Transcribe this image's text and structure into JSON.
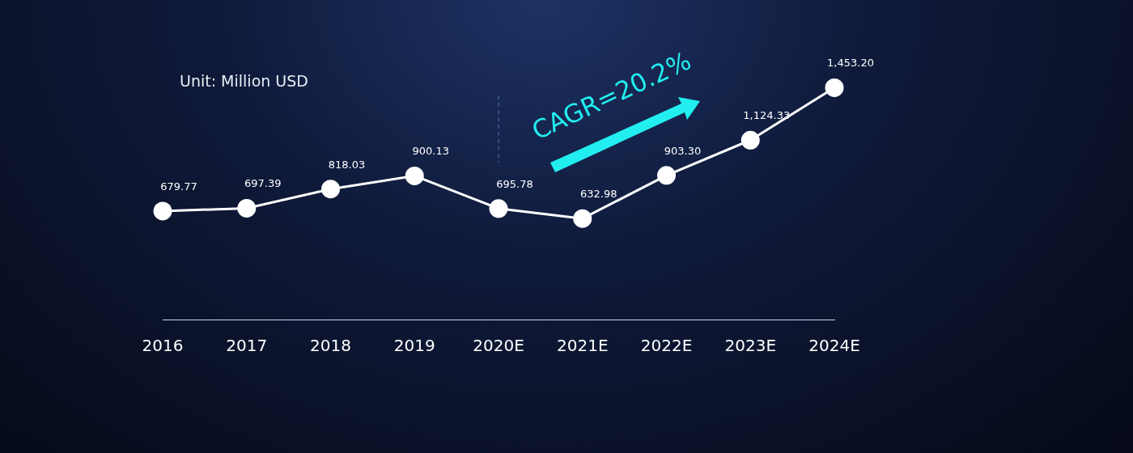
{
  "chart_data": {
    "type": "line",
    "title": "Unit: Million USD",
    "categories": [
      "2016",
      "2017",
      "2018",
      "2019",
      "2020E",
      "2021E",
      "2022E",
      "2023E",
      "2024E"
    ],
    "series": [
      {
        "color": "#ffffff",
        "values": [
          679.77,
          697.39,
          818.03,
          900.13,
          695.78,
          632.98,
          903.3,
          1124.33,
          1453.2
        ],
        "value_labels": [
          "679.77",
          "697.39",
          "818.03",
          "900.13",
          "695.78",
          "632.98",
          "903.30",
          "1,124.33",
          "1,453.20"
        ]
      }
    ],
    "marker": "circle",
    "grid": false,
    "legend": false,
    "tick_labels": "x",
    "ref_lines": [
      {
        "axis": "x",
        "value": "2020E",
        "color": "#4a78b8",
        "line_style": "dashed"
      }
    ],
    "annotations": [
      "CAGR=20.2%"
    ]
  }
}
